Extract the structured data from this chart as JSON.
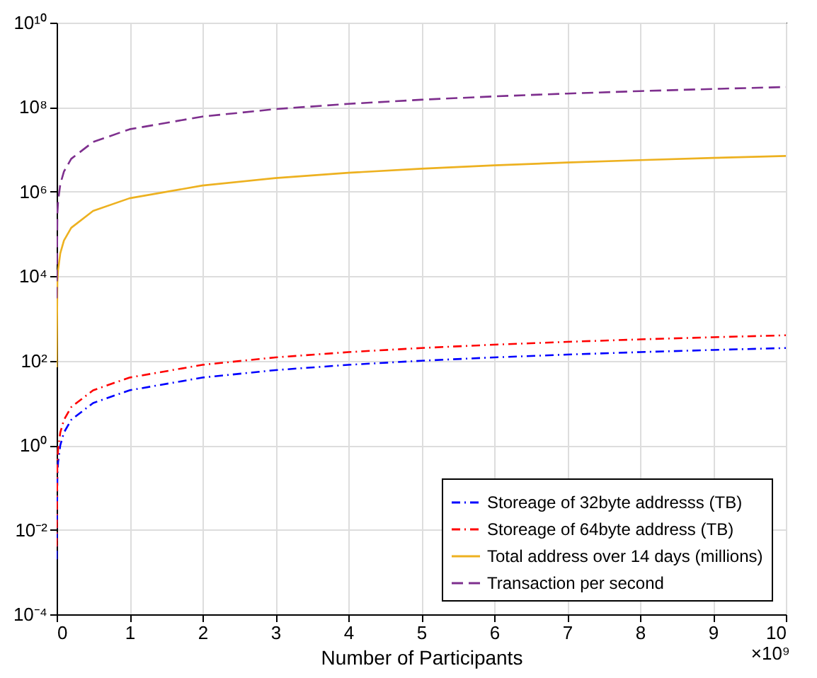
{
  "chart_data": {
    "type": "line",
    "xlabel": "Number of Participants",
    "x": [
      0.0001,
      0.01,
      0.02,
      0.05,
      0.1,
      0.2,
      0.5,
      1,
      2,
      3,
      4,
      5,
      6,
      7,
      8,
      9,
      10
    ],
    "series": [
      {
        "name": "Storeage of 32byte addresss (TB)",
        "color": "#0000ff",
        "line_style": "dashdot",
        "values": [
          0.002,
          0.2,
          0.4,
          1,
          2,
          4,
          10,
          20,
          40,
          60,
          80,
          100,
          120,
          140,
          160,
          180,
          200
        ]
      },
      {
        "name": "Storeage of 64byte address (TB)",
        "color": "#ff0000",
        "line_style": "dashdot",
        "values": [
          0.004,
          0.4,
          0.8,
          2,
          4,
          8,
          20,
          40,
          80,
          120,
          160,
          200,
          240,
          280,
          320,
          360,
          400
        ]
      },
      {
        "name": "Total address over 14 days (millions)",
        "color": "#edb120",
        "line_style": "solid",
        "values": [
          70,
          7000,
          14000,
          35000,
          70000,
          140000,
          350000,
          700000,
          1400000,
          2100000,
          2800000,
          3500000,
          4200000,
          4900000,
          5600000,
          6300000,
          7000000
        ]
      },
      {
        "name": "Transaction per second",
        "color": "#7e2f8e",
        "line_style": "dashed",
        "values": [
          3000,
          300000,
          600000,
          1500000,
          3000000,
          6000000,
          15000000,
          30000000,
          60000000,
          90000000,
          120000000,
          150000000,
          180000000,
          210000000,
          240000000,
          270000000,
          300000000
        ]
      }
    ],
    "xlim": [
      0,
      10
    ],
    "xticks": [
      0,
      1,
      2,
      3,
      4,
      5,
      6,
      7,
      8,
      9,
      10
    ],
    "ylim": [
      0.0001,
      10000000000
    ],
    "yticks": [
      {
        "value": 0.0001,
        "label": "10⁻⁴"
      },
      {
        "value": 0.01,
        "label": "10⁻²"
      },
      {
        "value": 1,
        "label": "10⁰"
      },
      {
        "value": 100,
        "label": "10²"
      },
      {
        "value": 10000,
        "label": "10⁴"
      },
      {
        "value": 1000000,
        "label": "10⁶"
      },
      {
        "value": 100000000,
        "label": "10⁸"
      },
      {
        "value": 10000000000,
        "label": "10¹⁰"
      }
    ],
    "log": "y",
    "grid": true,
    "legend": "bottom right",
    "annotations": [
      "×10⁹"
    ]
  }
}
